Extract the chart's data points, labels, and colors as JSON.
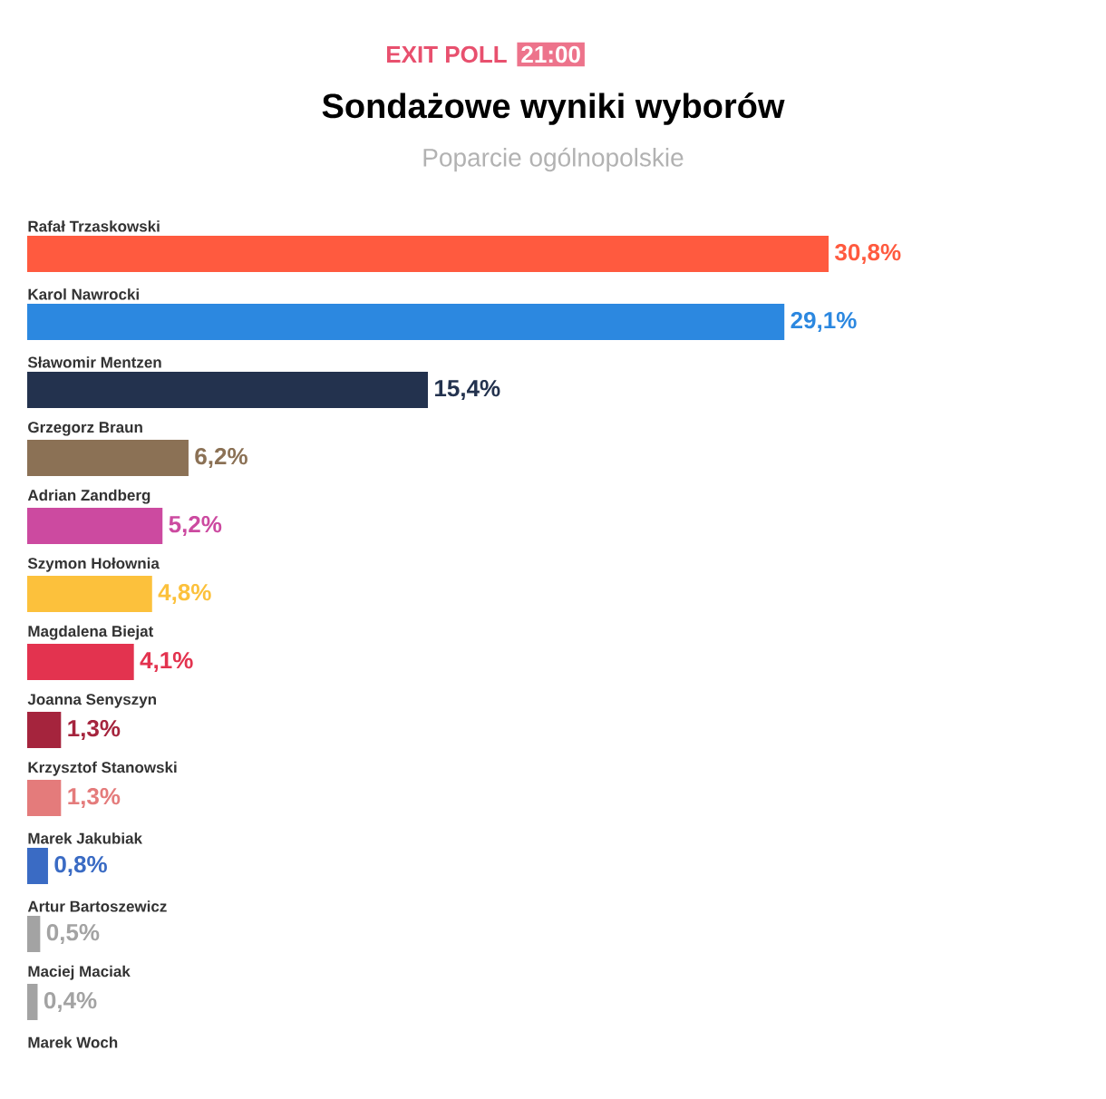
{
  "chart_data": {
    "type": "bar",
    "orientation": "horizontal",
    "title": "Sondażowe wyniki wyborów",
    "subtitle": "Poparcie ogólnopolskie",
    "annotations": [
      "EXIT POLL",
      "21:00"
    ],
    "categories": [
      "Rafał Trzaskowski",
      "Karol Nawrocki",
      "Sławomir Mentzen",
      "Grzegorz Braun",
      "Adrian Zandberg",
      "Szymon Hołownia",
      "Magdalena Biejat",
      "Joanna Senyszyn",
      "Krzysztof Stanowski",
      "Marek Jakubiak",
      "Artur Bartoszewicz",
      "Maciej Maciak",
      "Marek Woch"
    ],
    "values": [
      30.8,
      29.1,
      15.4,
      6.2,
      5.2,
      4.8,
      4.1,
      1.3,
      1.3,
      0.8,
      0.5,
      0.4,
      null
    ],
    "value_labels": [
      "30,8%",
      "29,1%",
      "15,4%",
      "6,2%",
      "5,2%",
      "4,8%",
      "4,1%",
      "1,3%",
      "1,3%",
      "0,8%",
      "0,5%",
      "0,4%",
      null
    ],
    "colors": [
      "#ff5a3f",
      "#2c88e0",
      "#23324e",
      "#8b7155",
      "#cc4aa0",
      "#fcc13c",
      "#e3334f",
      "#a5243d",
      "#e47b7b",
      "#3a6bc4",
      "#a3a3a3",
      "#a3a3a3",
      "#a3a3a3"
    ]
  }
}
